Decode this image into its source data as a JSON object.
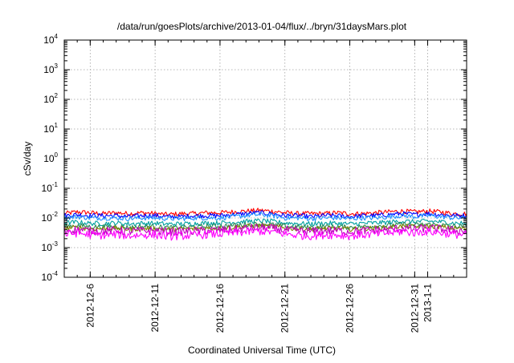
{
  "chart_data": {
    "type": "line",
    "title": "/data/run/goesPlots/archive/2013-01-04/flux/../bryn/31daysMars.plot",
    "xlabel": "Coordinated Universal Time (UTC)",
    "ylabel": "cSv/day",
    "yscale": "log",
    "ylim": [
      0.0001,
      10000
    ],
    "xlim": [
      "2012-12-04",
      "2013-01-04"
    ],
    "grid": true,
    "legend": "none",
    "y_ticks": [
      {
        "base": "10",
        "exp": "-4",
        "value": 0.0001
      },
      {
        "base": "10",
        "exp": "-3",
        "value": 0.001
      },
      {
        "base": "10",
        "exp": "-2",
        "value": 0.01
      },
      {
        "base": "10",
        "exp": "-1",
        "value": 0.1
      },
      {
        "base": "10",
        "exp": "0",
        "value": 1
      },
      {
        "base": "10",
        "exp": "1",
        "value": 10
      },
      {
        "base": "10",
        "exp": "2",
        "value": 100
      },
      {
        "base": "10",
        "exp": "3",
        "value": 1000
      },
      {
        "base": "10",
        "exp": "4",
        "value": 10000
      }
    ],
    "x_ticks": [
      {
        "label": "2012-12-6",
        "date": "2012-12-06"
      },
      {
        "label": "2012-12-11",
        "date": "2012-12-11"
      },
      {
        "label": "2012-12-16",
        "date": "2012-12-16"
      },
      {
        "label": "2012-12-21",
        "date": "2012-12-21"
      },
      {
        "label": "2012-12-26",
        "date": "2012-12-26"
      },
      {
        "label": "2012-12-31",
        "date": "2012-12-31"
      },
      {
        "label": "2013-1-1",
        "date": "2013-01-01"
      }
    ],
    "x": [
      "2012-12-04",
      "2012-12-05",
      "2012-12-06",
      "2012-12-07",
      "2012-12-08",
      "2012-12-09",
      "2012-12-10",
      "2012-12-11",
      "2012-12-12",
      "2012-12-13",
      "2012-12-14",
      "2012-12-15",
      "2012-12-16",
      "2012-12-17",
      "2012-12-18",
      "2012-12-19",
      "2012-12-20",
      "2012-12-21",
      "2012-12-22",
      "2012-12-23",
      "2012-12-24",
      "2012-12-25",
      "2012-12-26",
      "2012-12-27",
      "2012-12-28",
      "2012-12-29",
      "2012-12-30",
      "2012-12-31",
      "2013-01-01",
      "2013-01-02",
      "2013-01-03",
      "2013-01-04"
    ],
    "series": [
      {
        "color": "#ff0000",
        "values": [
          0.014,
          0.016,
          0.015,
          0.014,
          0.015,
          0.014,
          0.015,
          0.014,
          0.013,
          0.014,
          0.014,
          0.015,
          0.015,
          0.016,
          0.017,
          0.018,
          0.017,
          0.015,
          0.014,
          0.014,
          0.014,
          0.015,
          0.014,
          0.014,
          0.015,
          0.016,
          0.017,
          0.016,
          0.017,
          0.016,
          0.014,
          0.014
        ]
      },
      {
        "color": "#0000ff",
        "values": [
          0.012,
          0.013,
          0.012,
          0.012,
          0.012,
          0.011,
          0.012,
          0.012,
          0.011,
          0.011,
          0.012,
          0.012,
          0.012,
          0.013,
          0.014,
          0.015,
          0.014,
          0.012,
          0.012,
          0.011,
          0.012,
          0.012,
          0.011,
          0.012,
          0.012,
          0.013,
          0.014,
          0.013,
          0.014,
          0.013,
          0.012,
          0.012
        ]
      },
      {
        "color": "#1e90ff",
        "values": [
          0.01,
          0.011,
          0.01,
          0.01,
          0.01,
          0.0095,
          0.01,
          0.01,
          0.0095,
          0.0095,
          0.01,
          0.01,
          0.01,
          0.011,
          0.012,
          0.013,
          0.012,
          0.01,
          0.01,
          0.0095,
          0.01,
          0.01,
          0.0095,
          0.01,
          0.01,
          0.011,
          0.012,
          0.011,
          0.012,
          0.011,
          0.01,
          0.01
        ]
      },
      {
        "color": "#00a0a0",
        "values": [
          0.0068,
          0.0072,
          0.0066,
          0.0065,
          0.0068,
          0.0063,
          0.0066,
          0.0066,
          0.0062,
          0.0063,
          0.0065,
          0.0067,
          0.0068,
          0.0072,
          0.0076,
          0.008,
          0.0076,
          0.0068,
          0.0065,
          0.0063,
          0.0066,
          0.0066,
          0.0063,
          0.0066,
          0.0068,
          0.0072,
          0.0078,
          0.0074,
          0.0078,
          0.0074,
          0.0067,
          0.0066
        ]
      },
      {
        "color": "#2e8b57",
        "values": [
          0.0052,
          0.0056,
          0.0051,
          0.005,
          0.0052,
          0.0048,
          0.0051,
          0.0051,
          0.0047,
          0.0048,
          0.005,
          0.0052,
          0.0053,
          0.0056,
          0.006,
          0.0063,
          0.006,
          0.0053,
          0.005,
          0.0048,
          0.0051,
          0.0051,
          0.0048,
          0.0051,
          0.0053,
          0.0056,
          0.0061,
          0.0058,
          0.0061,
          0.0058,
          0.0052,
          0.0051
        ]
      },
      {
        "color": "#808000",
        "values": [
          0.0045,
          0.0048,
          0.0044,
          0.0043,
          0.0045,
          0.0042,
          0.0044,
          0.0044,
          0.0041,
          0.0042,
          0.0043,
          0.0045,
          0.0046,
          0.0048,
          0.0052,
          0.0055,
          0.0052,
          0.0046,
          0.0043,
          0.0042,
          0.0044,
          0.0044,
          0.0042,
          0.0044,
          0.0046,
          0.0048,
          0.0053,
          0.005,
          0.0053,
          0.005,
          0.0045,
          0.0044
        ]
      },
      {
        "color": "#c000c0",
        "values": [
          0.0038,
          0.004,
          0.0037,
          0.0036,
          0.0038,
          0.0035,
          0.0037,
          0.0037,
          0.0034,
          0.0035,
          0.0036,
          0.0038,
          0.0039,
          0.004,
          0.0044,
          0.0047,
          0.0044,
          0.0039,
          0.0036,
          0.0035,
          0.0037,
          0.0037,
          0.0035,
          0.0037,
          0.0039,
          0.004,
          0.0045,
          0.0042,
          0.0045,
          0.0042,
          0.0038,
          0.0037
        ]
      },
      {
        "color": "#ff00ff",
        "values": [
          0.0028,
          0.0031,
          0.0027,
          0.0026,
          0.0028,
          0.0025,
          0.0027,
          0.0027,
          0.0024,
          0.0025,
          0.0026,
          0.0028,
          0.0029,
          0.0031,
          0.0034,
          0.0036,
          0.0034,
          0.0029,
          0.0026,
          0.0025,
          0.0027,
          0.0027,
          0.0025,
          0.0027,
          0.0029,
          0.0031,
          0.0035,
          0.0032,
          0.0035,
          0.0032,
          0.0028,
          0.0027
        ]
      }
    ]
  }
}
